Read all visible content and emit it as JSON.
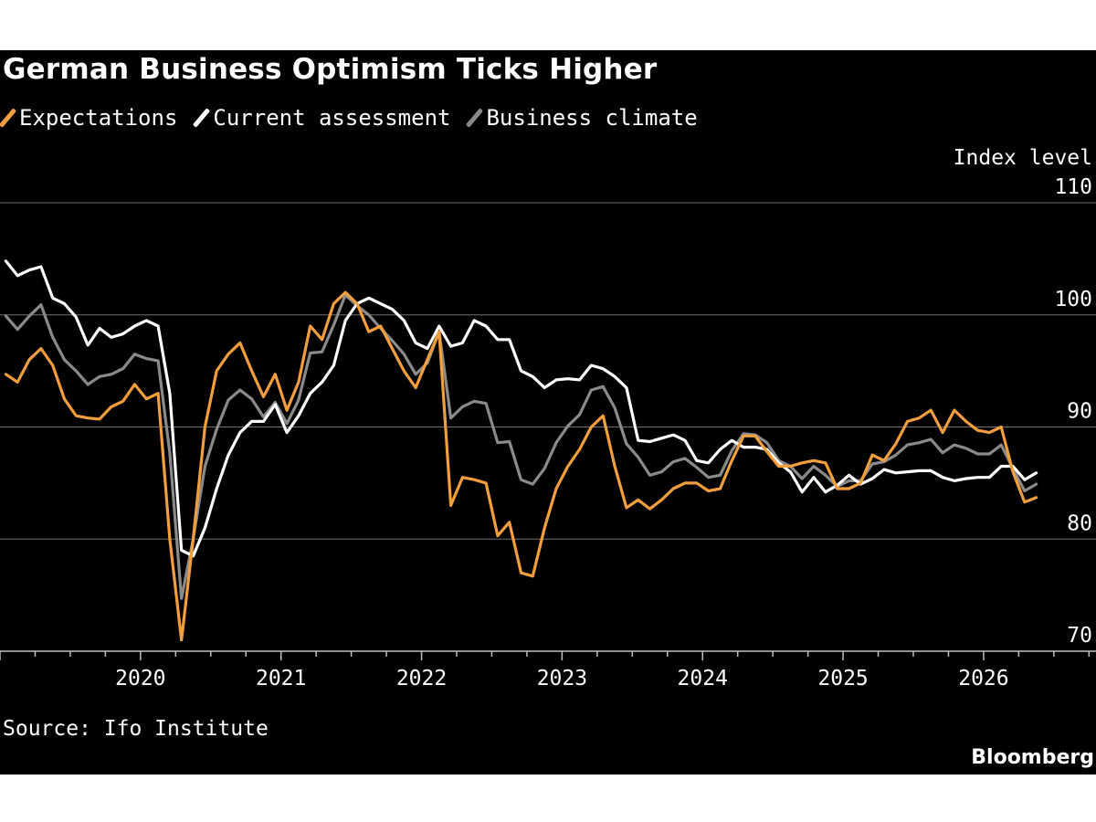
{
  "chart_data": {
    "type": "line",
    "title": "German Business Optimism Ticks Higher",
    "ylabel": "Index level",
    "ylim": [
      70,
      110
    ],
    "yticks": [
      70,
      80,
      90,
      100,
      110
    ],
    "xticks": [
      {
        "label": "2020",
        "t": 2020.0
      },
      {
        "label": "2021",
        "t": 2021.0
      },
      {
        "label": "2022",
        "t": 2022.0
      },
      {
        "label": "2023",
        "t": 2023.0
      },
      {
        "label": "2024",
        "t": 2024.0
      },
      {
        "label": "2025",
        "t": 2025.0
      },
      {
        "label": "2026",
        "t": 2026.0
      }
    ],
    "xlim": [
      2019.0,
      2026.8
    ],
    "grid": true,
    "legend": "top-left",
    "start": "2019-01",
    "series": [
      {
        "name": "Expectations",
        "color": "#F39E3D",
        "values": [
          94.7,
          94.0,
          96.0,
          97.0,
          95.5,
          92.5,
          91.0,
          90.8,
          90.7,
          91.8,
          92.3,
          93.8,
          92.5,
          93.0,
          80.0,
          71.0,
          80.0,
          90.0,
          95.0,
          96.5,
          97.5,
          95.0,
          92.7,
          94.7,
          91.5,
          94.0,
          99.0,
          97.8,
          101.0,
          102.0,
          101.0,
          98.5,
          99.0,
          97.0,
          95.0,
          93.5,
          96.0,
          98.5,
          83.0,
          85.5,
          85.3,
          85.0,
          80.3,
          81.5,
          77.0,
          76.7,
          81.0,
          84.5,
          86.5,
          88.0,
          90.0,
          91.0,
          86.5,
          82.8,
          83.5,
          82.7,
          83.5,
          84.5,
          85.0,
          85.0,
          84.3,
          84.5,
          87.0,
          89.2,
          89.2,
          87.8,
          86.5,
          86.5,
          86.8,
          87.0,
          86.8,
          84.5,
          84.5,
          85.0,
          87.5,
          87.0,
          88.5,
          90.5,
          90.8,
          91.5,
          89.5,
          91.5,
          90.5,
          89.7,
          89.5,
          90.0,
          86.0,
          83.3,
          83.7
        ]
      },
      {
        "name": "Current assessment",
        "color": "#FFFFFF",
        "values": [
          104.8,
          103.5,
          104.0,
          104.3,
          101.5,
          101.0,
          99.8,
          97.3,
          98.8,
          98.0,
          98.3,
          99.0,
          99.5,
          99.0,
          93.0,
          79.0,
          78.5,
          81.0,
          84.5,
          87.5,
          89.5,
          90.5,
          90.5,
          92.0,
          89.5,
          91.0,
          93.0,
          94.0,
          95.5,
          99.5,
          101.0,
          101.5,
          101.0,
          100.5,
          99.5,
          97.5,
          97.0,
          99.0,
          97.2,
          97.5,
          99.5,
          99.0,
          97.8,
          97.8,
          95.0,
          94.5,
          93.5,
          94.2,
          94.3,
          94.2,
          95.5,
          95.2,
          94.5,
          93.5,
          88.8,
          88.7,
          89.0,
          89.3,
          88.8,
          87.0,
          86.8,
          88.0,
          88.8,
          88.2,
          88.2,
          88.0,
          86.8,
          86.0,
          84.2,
          85.5,
          84.2,
          84.8,
          85.7,
          84.9,
          85.4,
          86.2,
          85.9,
          86.0,
          86.1,
          86.1,
          85.5,
          85.2,
          85.4,
          85.5,
          85.5,
          86.5,
          86.5,
          85.3,
          85.9
        ]
      },
      {
        "name": "Business climate",
        "color": "#8A8A8A",
        "values": [
          99.9,
          98.7,
          99.9,
          100.9,
          98.0,
          96.0,
          95.0,
          93.8,
          94.5,
          94.7,
          95.2,
          96.5,
          96.1,
          95.9,
          87.7,
          74.7,
          80.0,
          86.5,
          89.8,
          92.4,
          93.3,
          92.5,
          90.9,
          92.2,
          90.3,
          92.4,
          96.6,
          96.7,
          99.1,
          101.8,
          100.8,
          100.0,
          98.8,
          97.7,
          96.5,
          94.7,
          95.7,
          98.5,
          90.8,
          91.8,
          92.3,
          92.1,
          88.6,
          88.7,
          85.3,
          84.9,
          86.3,
          88.6,
          90.1,
          91.1,
          93.3,
          93.6,
          91.7,
          88.5,
          87.3,
          85.7,
          86.0,
          86.9,
          87.2,
          86.4,
          85.5,
          85.7,
          87.9,
          89.4,
          89.3,
          88.6,
          87.0,
          86.5,
          85.4,
          86.5,
          85.7,
          84.7,
          85.2,
          85.2,
          86.7,
          86.9,
          87.5,
          88.4,
          88.6,
          88.9,
          87.7,
          88.4,
          88.1,
          87.6,
          87.6,
          88.4,
          86.3,
          84.3,
          84.9
        ]
      }
    ],
    "source": "Source: Ifo Institute",
    "brand": "Bloomberg"
  }
}
